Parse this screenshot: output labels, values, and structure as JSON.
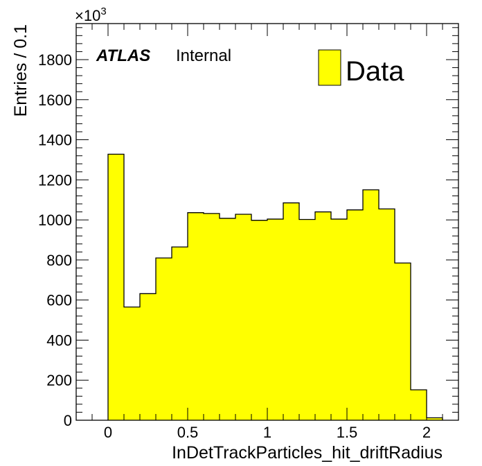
{
  "chart_data": {
    "type": "histogram",
    "xlabel": "InDetTrackParticles_hit_driftRadius",
    "ylabel": "Entries / 0.1",
    "y_multiplier_base": "×10",
    "y_multiplier_exponent": "3",
    "xlim": [
      -0.2,
      2.2
    ],
    "ylim": [
      0,
      1980
    ],
    "x_ticks": [
      {
        "value": 0,
        "label": "0"
      },
      {
        "value": 0.5,
        "label": "0.5"
      },
      {
        "value": 1,
        "label": "1"
      },
      {
        "value": 1.5,
        "label": "1.5"
      },
      {
        "value": 2,
        "label": "2"
      }
    ],
    "y_ticks": [
      {
        "value": 0,
        "label": "0"
      },
      {
        "value": 200,
        "label": "200"
      },
      {
        "value": 400,
        "label": "400"
      },
      {
        "value": 600,
        "label": "600"
      },
      {
        "value": 800,
        "label": "800"
      },
      {
        "value": 1000,
        "label": "1000"
      },
      {
        "value": 1200,
        "label": "1200"
      },
      {
        "value": 1400,
        "label": "1400"
      },
      {
        "value": 1600,
        "label": "1600"
      },
      {
        "value": 1800,
        "label": "1800"
      }
    ],
    "bin_edges": [
      0,
      0.1,
      0.2,
      0.3,
      0.4,
      0.5,
      0.6,
      0.7,
      0.8,
      0.9,
      1.0,
      1.1,
      1.2,
      1.3,
      1.4,
      1.5,
      1.6,
      1.7,
      1.8,
      1.9,
      2.0,
      2.1
    ],
    "series": [
      {
        "name": "Data",
        "color": "#ffff00",
        "values": [
          1328,
          565,
          632,
          810,
          865,
          1036,
          1032,
          1008,
          1028,
          998,
          1004,
          1085,
          1002,
          1040,
          1004,
          1050,
          1150,
          1055,
          785,
          152,
          12
        ]
      }
    ],
    "grid": false,
    "legend_position": "top-right"
  },
  "annotation": {
    "experiment": "ATLAS",
    "status": "Internal"
  },
  "legend": {
    "label": "Data"
  }
}
